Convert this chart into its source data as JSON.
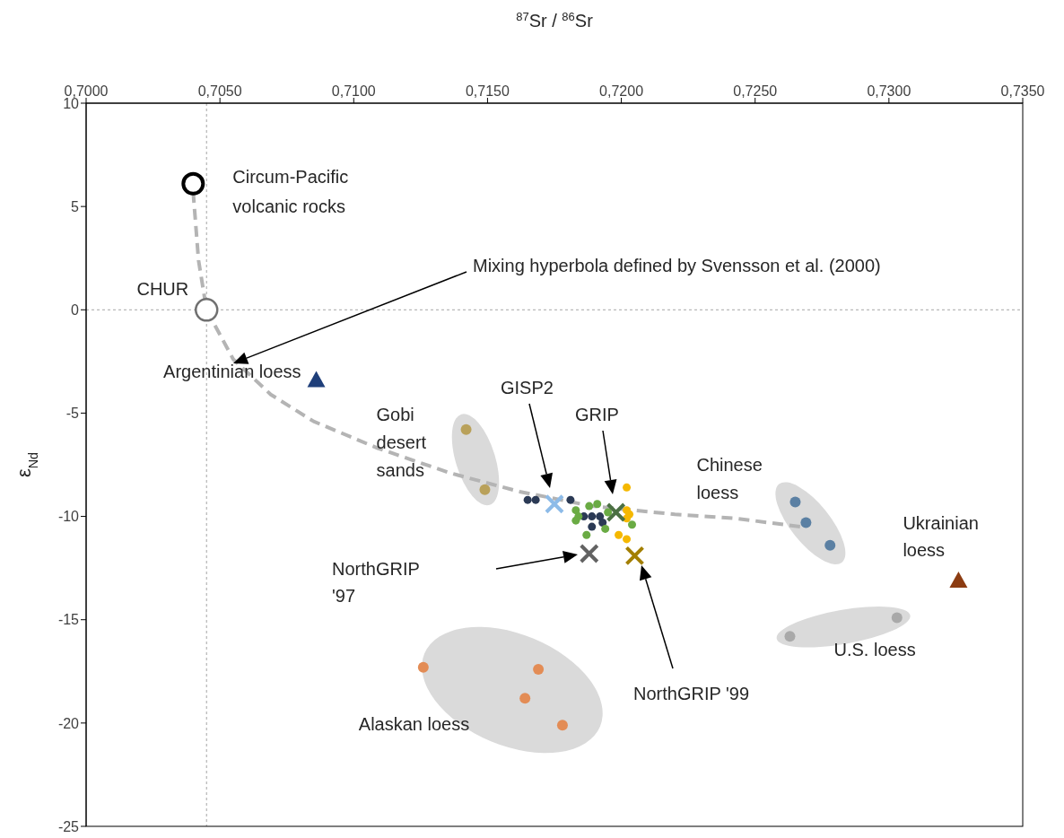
{
  "chart_data": {
    "type": "scatter",
    "xlabel": "$^{87}$Sr / $^{86}$Sr",
    "ylabel": "ε$_{Nd}$",
    "xlim": [
      0.7,
      0.735
    ],
    "ylim": [
      -25,
      10
    ],
    "xticks": [
      {
        "value": 0.7,
        "label": "0,7000"
      },
      {
        "value": 0.705,
        "label": "0,7050"
      },
      {
        "value": 0.71,
        "label": "0,7100"
      },
      {
        "value": 0.715,
        "label": "0,7150"
      },
      {
        "value": 0.72,
        "label": "0,7200"
      },
      {
        "value": 0.725,
        "label": "0,7250"
      },
      {
        "value": 0.73,
        "label": "0,7300"
      },
      {
        "value": 0.735,
        "label": "0,7350"
      }
    ],
    "yticks": [
      -25,
      -20,
      -15,
      -10,
      -5,
      0,
      5,
      10
    ],
    "ref_lines": [
      {
        "axis": "x",
        "value": 0.7045,
        "color": "#a6a6a6",
        "line_style": "dashed"
      },
      {
        "axis": "y",
        "value": 0,
        "color": "#a6a6a6",
        "line_style": "dashed"
      }
    ],
    "annotations": [
      {
        "text": "Circum-Pacific volcanic rocks",
        "x": 0.704,
        "y": 6.1
      },
      {
        "text": "CHUR",
        "x": 0.7045,
        "y": 0
      },
      "Mixing hyperbola defined by Svensson et al. (2000)",
      {
        "text": "Argentinian loess",
        "x": 0.7086,
        "y": -3.4
      },
      {
        "text": "Gobi desert sands",
        "x": 0.7142,
        "y": -5.8
      },
      {
        "text": "Chinese loess",
        "x": 0.7265,
        "y": -9.3
      },
      {
        "text": "U.S. loess",
        "x": 0.7263,
        "y": -15.8
      },
      {
        "text": "Ukrainian loess",
        "x": 0.7326,
        "y": -13.1
      },
      {
        "text": "Alaskan loess",
        "x": 0.7126,
        "y": -17.3
      },
      "GISP2",
      "GRIP",
      "NorthGRIP '97",
      "NorthGRIP  '99"
    ],
    "series": [
      {
        "marker": "circle",
        "color": "#000000",
        "x": [
          0.704
        ],
        "values": [
          6.1
        ]
      },
      {
        "marker": "circle",
        "color": "#707070",
        "x": [
          0.7045
        ],
        "values": [
          0
        ]
      },
      {
        "type": "line",
        "marker": "none",
        "line_style": "dashed",
        "color": "#b4b4b4",
        "x": [
          0.704,
          0.7042,
          0.7045,
          0.7055,
          0.7069,
          0.7085,
          0.7109,
          0.7136,
          0.7162,
          0.7189,
          0.722,
          0.7243,
          0.7267
        ],
        "values": [
          5.7,
          2.4,
          0,
          -2.4,
          -4.1,
          -5.4,
          -6.7,
          -7.9,
          -8.8,
          -9.5,
          -9.9,
          -10.1,
          -10.5
        ]
      },
      {
        "marker": "triangle",
        "color": "#1f3f7a",
        "x": [
          0.7086
        ],
        "values": [
          -3.4
        ]
      },
      {
        "marker": "circle",
        "color": "#b9a15a",
        "x": [
          0.7142,
          0.7149
        ],
        "values": [
          -5.8,
          -8.7
        ]
      },
      {
        "marker": "circle",
        "color": "#5b80a3",
        "x": [
          0.7265,
          0.7269,
          0.7278
        ],
        "values": [
          -9.3,
          -10.3,
          -11.4
        ]
      },
      {
        "marker": "circle",
        "color": "#a9a9a9",
        "x": [
          0.7263,
          0.7303
        ],
        "values": [
          -15.8,
          -14.9
        ]
      },
      {
        "marker": "triangle",
        "color": "#8c3c12",
        "x": [
          0.7326
        ],
        "values": [
          -13.1
        ]
      },
      {
        "marker": "circle",
        "color": "#e38c55",
        "x": [
          0.7126,
          0.7169,
          0.7164,
          0.7178
        ],
        "values": [
          -17.3,
          -17.4,
          -18.8,
          -20.1
        ]
      },
      {
        "marker": "circle",
        "color": "#2b3a55",
        "x": [
          0.7165,
          0.7168,
          0.7181,
          0.7186,
          0.7189,
          0.7192,
          0.7193,
          0.7189
        ],
        "values": [
          -9.2,
          -9.2,
          -9.2,
          -10.0,
          -10.0,
          -10.0,
          -10.3,
          -10.5
        ]
      },
      {
        "marker": "circle",
        "color": "#6aab44",
        "x": [
          0.7183,
          0.7184,
          0.7188,
          0.7191,
          0.7187,
          0.7194,
          0.7204,
          0.7183,
          0.7195
        ],
        "values": [
          -9.7,
          -10.0,
          -9.5,
          -9.4,
          -10.9,
          -10.6,
          -10.4,
          -10.2,
          -9.8
        ]
      },
      {
        "marker": "circle",
        "color": "#f5b800",
        "x": [
          0.7202,
          0.7202,
          0.7202,
          0.7199,
          0.7202,
          0.7203
        ],
        "values": [
          -8.6,
          -9.7,
          -10.1,
          -10.9,
          -11.1,
          -9.9
        ]
      },
      {
        "marker": "cross",
        "color": "#8dbbe8",
        "x": [
          0.7175
        ],
        "values": [
          -9.4
        ]
      },
      {
        "marker": "cross",
        "color": "#4b7043",
        "x": [
          0.7198
        ],
        "values": [
          -9.8
        ]
      },
      {
        "marker": "cross",
        "color": "#626262",
        "x": [
          0.7188
        ],
        "values": [
          -11.8
        ]
      },
      {
        "marker": "cross",
        "color": "#a37f00",
        "x": [
          0.7205
        ],
        "values": [
          -11.9
        ]
      }
    ]
  }
}
